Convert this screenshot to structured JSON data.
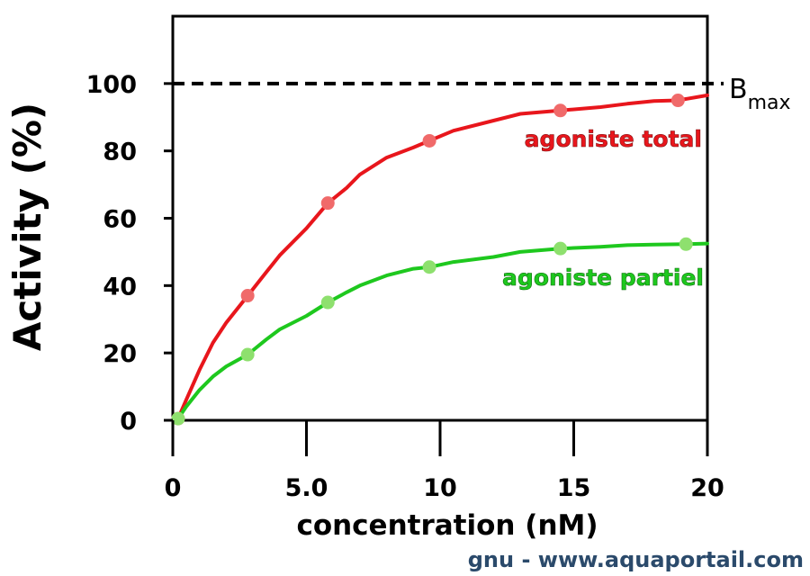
{
  "chart_data": {
    "type": "line",
    "xlabel": "concentration (nM)",
    "ylabel": "Activity (%)",
    "xlim": [
      0,
      20
    ],
    "ylim": [
      0,
      120
    ],
    "x_ticks": [
      {
        "value": 0,
        "label": "0"
      },
      {
        "value": 5,
        "label": "5.0"
      },
      {
        "value": 10,
        "label": "10"
      },
      {
        "value": 15,
        "label": "15"
      },
      {
        "value": 20,
        "label": "20"
      }
    ],
    "y_ticks": [
      {
        "value": 0,
        "label": "0"
      },
      {
        "value": 20,
        "label": "20"
      },
      {
        "value": 40,
        "label": "40"
      },
      {
        "value": 60,
        "label": "60"
      },
      {
        "value": 80,
        "label": "80"
      },
      {
        "value": 100,
        "label": "100"
      }
    ],
    "reference_line": {
      "y": 100,
      "style": "dashed",
      "label_main": "B",
      "label_sub": "max"
    },
    "series": [
      {
        "name": "agoniste total",
        "color": "#e8161c",
        "marker_color": "#f06a6a",
        "x": [
          0.2,
          2.8,
          5.8,
          9.6,
          14.5,
          18.9
        ],
        "y": [
          0.5,
          37,
          64.5,
          83,
          92,
          95
        ],
        "curve_x": [
          0.2,
          0.5,
          1,
          1.5,
          2,
          2.8,
          3.5,
          4,
          5,
          5.8,
          6.5,
          7,
          8,
          9,
          9.6,
          10.5,
          12,
          13,
          14.5,
          16,
          17,
          18,
          18.9,
          20
        ],
        "curve_y": [
          0.5,
          6,
          15,
          23,
          29,
          37,
          44,
          49,
          57,
          64.5,
          69,
          73,
          78,
          81,
          83,
          86,
          89,
          91,
          92,
          93,
          94,
          94.8,
          95,
          96.5
        ]
      },
      {
        "name": "agoniste partiel",
        "color": "#1ec81e",
        "marker_color": "#8ee06e",
        "x": [
          0.2,
          2.8,
          5.8,
          9.6,
          14.5,
          19.2
        ],
        "y": [
          0.5,
          19.5,
          35,
          45.5,
          51,
          52.3
        ],
        "curve_x": [
          0.2,
          0.5,
          1,
          1.5,
          2,
          2.8,
          3.5,
          4,
          5,
          5.8,
          6.5,
          7,
          8,
          9,
          9.6,
          10.5,
          12,
          13,
          14.5,
          16,
          17,
          18,
          19.2,
          20
        ],
        "curve_y": [
          0.5,
          4,
          9,
          13,
          16,
          19.5,
          24,
          27,
          31,
          35,
          38,
          40,
          43,
          45,
          45.5,
          47,
          48.5,
          50,
          51,
          51.5,
          52,
          52.2,
          52.3,
          52.5
        ]
      }
    ],
    "annotations": [
      {
        "text": "agoniste total",
        "color": "#e8161c"
      },
      {
        "text": "agoniste partiel",
        "color": "#1ec81e"
      }
    ],
    "grid": false,
    "legend": "none"
  },
  "watermark": "gnu - www.aquaportail.com"
}
